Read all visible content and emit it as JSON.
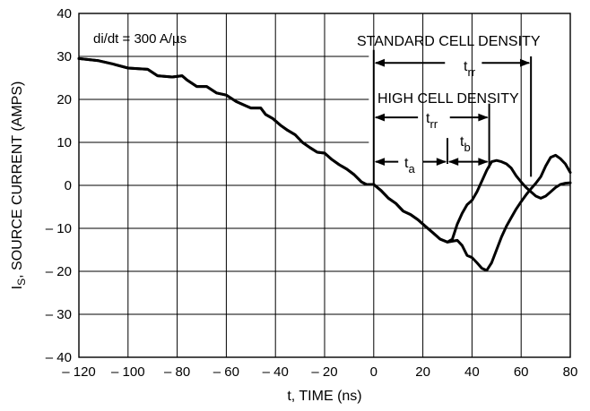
{
  "chart_data": {
    "type": "line",
    "title": "",
    "xlabel": "t, TIME (ns)",
    "ylabel_main": "I",
    "ylabel_sub": "S",
    "ylabel_rest": ", SOURCE CURRENT (AMPS)",
    "xlim": [
      -120,
      80
    ],
    "ylim": [
      -40,
      40
    ],
    "grid": true,
    "x_ticks": [
      -120,
      -100,
      -80,
      -60,
      -40,
      -20,
      0,
      20,
      40,
      60,
      80
    ],
    "x_tick_labels": [
      "– 120",
      "– 100",
      "– 80",
      "– 60",
      "– 40",
      "– 20",
      "0",
      "20",
      "40",
      "60",
      "80"
    ],
    "y_ticks": [
      40,
      30,
      20,
      10,
      0,
      -10,
      -20,
      -30,
      -40
    ],
    "y_tick_labels": [
      "40",
      "30",
      "20",
      "10",
      "0",
      "– 10",
      "– 20",
      "– 30",
      "– 40"
    ],
    "series": [
      {
        "x": [
          -120,
          -112,
          -106,
          -100,
          -92,
          -88,
          -82,
          -78,
          -76,
          -72,
          -68,
          -64,
          -60,
          -56,
          -52,
          -50,
          -46,
          -44,
          -41,
          -38,
          -35,
          -32,
          -29,
          -26,
          -23,
          -20,
          -17,
          -14,
          -11,
          -8,
          -5,
          -3,
          0,
          3,
          6,
          9,
          12,
          15,
          18,
          21,
          24,
          27,
          30,
          32,
          34,
          36,
          38,
          40,
          42,
          44,
          46,
          48,
          50,
          52,
          54,
          56,
          58,
          60,
          62,
          64,
          66,
          68,
          70,
          72,
          74,
          76,
          78,
          80
        ],
        "y": [
          29.5,
          29,
          28.2,
          27.3,
          27,
          25.5,
          25.2,
          25.5,
          24.5,
          23,
          23,
          21.5,
          21,
          19.5,
          18.5,
          18,
          18,
          16.5,
          15.5,
          14,
          12.8,
          11.8,
          10,
          8.8,
          7.7,
          7.5,
          6,
          4.8,
          3.8,
          2.5,
          0.8,
          0.2,
          0.2,
          -1.2,
          -3,
          -4.2,
          -6,
          -6.8,
          -8,
          -9.5,
          -11,
          -12.5,
          -13.2,
          -12.5,
          -9,
          -6.5,
          -4.5,
          -3.5,
          -1.5,
          1,
          3.5,
          5.5,
          5.8,
          5.5,
          5,
          4,
          2.2,
          0.8,
          -0.5,
          -1.5,
          -2.5,
          -3,
          -2.5,
          -1.5,
          -0.5,
          0.2,
          0.5,
          0.6
        ]
      },
      {
        "x": [
          -120,
          -112,
          -106,
          -100,
          -92,
          -88,
          -82,
          -78,
          -76,
          -72,
          -68,
          -64,
          -60,
          -56,
          -52,
          -50,
          -46,
          -44,
          -41,
          -38,
          -35,
          -32,
          -29,
          -26,
          -23,
          -20,
          -17,
          -14,
          -11,
          -8,
          -5,
          -3,
          0,
          3,
          6,
          9,
          12,
          15,
          18,
          21,
          24,
          27,
          30,
          32,
          34,
          36,
          38,
          40,
          42,
          44,
          46,
          48,
          50,
          52,
          54,
          56,
          58,
          60,
          62,
          64,
          66,
          68,
          70,
          72,
          74,
          76,
          78,
          80
        ],
        "y": [
          29.5,
          29,
          28.2,
          27.3,
          27,
          25.5,
          25.2,
          25.5,
          24.5,
          23,
          23,
          21.5,
          21,
          19.5,
          18.5,
          18,
          18,
          16.5,
          15.5,
          14,
          12.8,
          11.8,
          10,
          8.8,
          7.7,
          7.5,
          6,
          4.8,
          3.8,
          2.5,
          0.8,
          0.2,
          0.2,
          -1.2,
          -3,
          -4.2,
          -6,
          -6.8,
          -8,
          -9.5,
          -11,
          -12.5,
          -13.2,
          -13,
          -12.8,
          -14,
          -16.3,
          -16.8,
          -18,
          -19.3,
          -19.8,
          -18,
          -15,
          -12,
          -9.5,
          -7.5,
          -5.5,
          -3.8,
          -2.2,
          -0.8,
          0.5,
          2,
          4.5,
          6.5,
          7,
          6.2,
          5,
          3
        ]
      }
    ],
    "annotations": {
      "didt": "di/dt = 300 A/µs",
      "standard": "STANDARD CELL DENSITY",
      "high": "HIGH CELL DENSITY",
      "t_main": "t",
      "rr_sub": "rr",
      "a_sub": "a",
      "b_sub": "b"
    }
  }
}
